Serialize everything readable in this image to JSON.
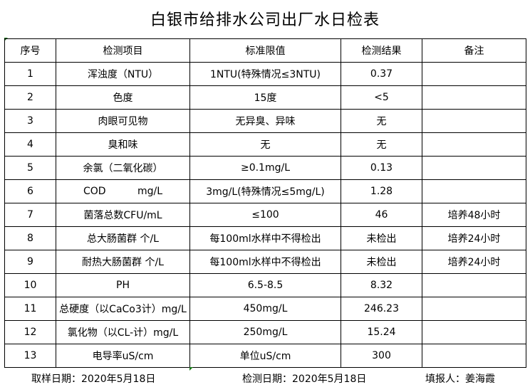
{
  "title": "白银市给排水公司出厂水日检表",
  "headers": [
    "序号",
    "检测项目",
    "标准限值",
    "检测结果",
    "备注"
  ],
  "rows": [
    [
      "1",
      "浑浊度（NTU）",
      "1NTU(特殊情况≤3NTU)",
      "0.37",
      ""
    ],
    [
      "2",
      "色度",
      "15度",
      "<5",
      ""
    ],
    [
      "3",
      "肉眼可见物",
      "无异臭、异味",
      "无",
      ""
    ],
    [
      "4",
      "臭和味",
      "无",
      "无",
      ""
    ],
    [
      "5",
      "余氯（二氧化碳）",
      "≥0.1mg/L",
      "0.13",
      ""
    ],
    [
      "6",
      "COD          mg/L",
      "3mg/L(特殊情况≤5mg/L)",
      "1.28",
      ""
    ],
    [
      "7",
      "菌落总数CFU/mL",
      "≤100",
      "46",
      "培养48小时"
    ],
    [
      "8",
      "总大肠菌群 个/L",
      "每100ml水样中不得检出",
      "未检出",
      "培养24小时"
    ],
    [
      "9",
      "耐热大肠菌群 个/L",
      "每100ml水样中不得检出",
      "未检出",
      "培养24小时"
    ],
    [
      "10",
      "PH",
      "6.5-8.5",
      "8.32",
      ""
    ],
    [
      "11",
      "总硬度（以CaCo3计）mg/L",
      "450mg/L",
      "246.23",
      ""
    ],
    [
      "12",
      "氯化物（以CL-计）mg/L",
      "250mg/L",
      "15.24",
      ""
    ],
    [
      "13",
      "电导率uS/cm",
      "单位uS/cm",
      "300",
      ""
    ]
  ],
  "footer": {
    "sample_date": "取样日期：2020年5月18日",
    "test_date": "检测日期：2020年5月18日",
    "reporter": "填报人：姜海霞"
  }
}
